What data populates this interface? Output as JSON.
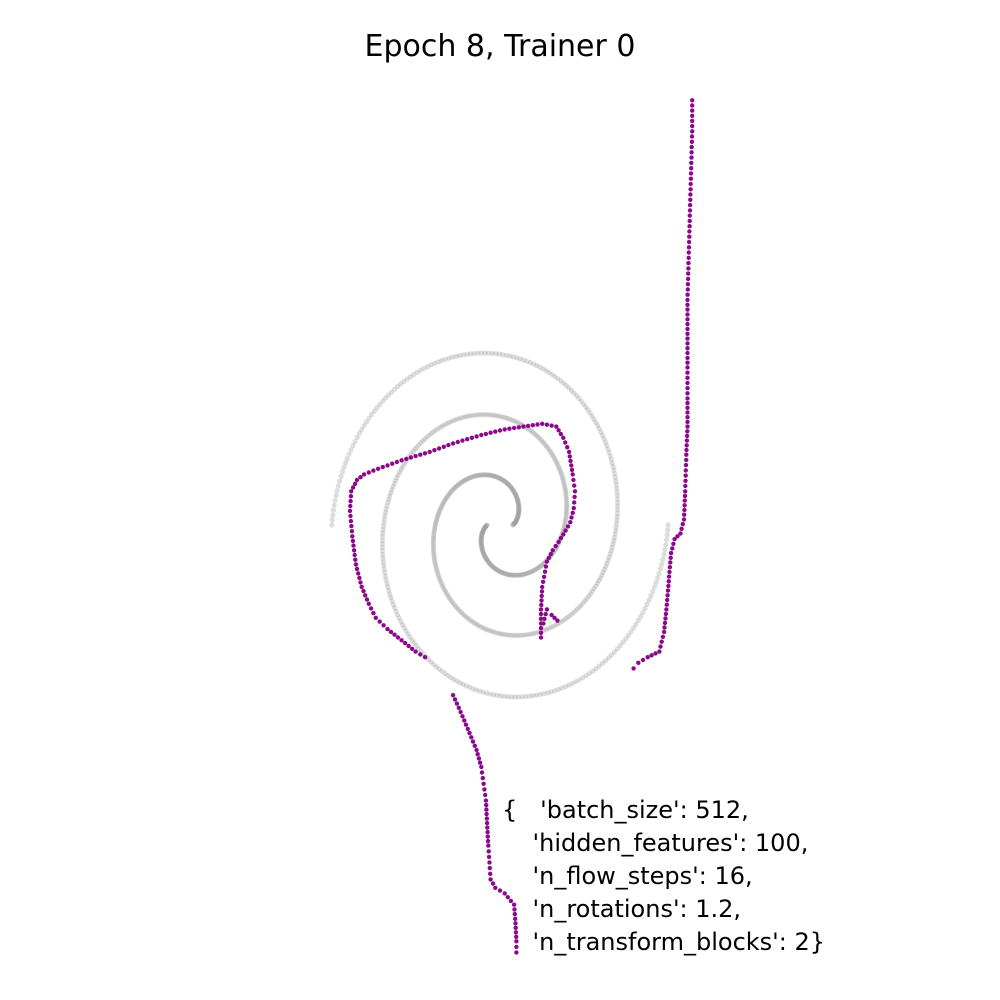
{
  "chart_data": {
    "type": "scatter",
    "title": "Epoch 8, Trainer 0",
    "xlabel": "",
    "ylabel": "",
    "axes_visible": false,
    "grid": false,
    "xlim": [
      -1.6,
      1.6
    ],
    "ylim": [
      -1.6,
      1.6
    ],
    "colors": {
      "target": "#9e9e9e",
      "samples": "#8b0a8b"
    },
    "series": [
      {
        "role": "target",
        "style": "faint gray two-arm spiral",
        "arms": [
          {
            "start_angle_deg": 0,
            "r_min": 0.06,
            "r_max": 0.78,
            "turns": 1.5
          },
          {
            "start_angle_deg": 180,
            "r_min": 0.06,
            "r_max": 0.78,
            "turns": 1.5
          }
        ]
      },
      {
        "role": "samples",
        "style": "purple points",
        "segments": [
          [
            [
              0.82,
              1.51
            ],
            [
              0.82,
              1.4
            ],
            [
              0.815,
              1.25
            ],
            [
              0.81,
              1.1
            ],
            [
              0.805,
              0.95
            ],
            [
              0.8,
              0.8
            ],
            [
              0.8,
              0.68
            ],
            [
              0.8,
              0.56
            ],
            [
              0.8,
              0.45
            ],
            [
              0.8,
              0.35
            ],
            [
              0.795,
              0.25
            ],
            [
              0.79,
              0.12
            ],
            [
              0.785,
              0.02
            ],
            [
              0.77,
              -0.03
            ],
            [
              0.745,
              -0.05
            ],
            [
              0.73,
              -0.1
            ],
            [
              0.72,
              -0.2
            ],
            [
              0.71,
              -0.3
            ],
            [
              0.7,
              -0.38
            ],
            [
              0.68,
              -0.45
            ],
            [
              0.63,
              -0.47
            ],
            [
              0.59,
              -0.49
            ],
            [
              0.57,
              -0.51
            ]
          ],
          [
            [
              0.175,
              -0.4
            ],
            [
              0.175,
              -0.3
            ],
            [
              0.18,
              -0.22
            ],
            [
              0.2,
              -0.13
            ],
            [
              0.225,
              -0.09
            ],
            [
              0.25,
              -0.06
            ],
            [
              0.28,
              -0.02
            ],
            [
              0.3,
              0.01
            ],
            [
              0.315,
              0.06
            ],
            [
              0.32,
              0.12
            ],
            [
              0.31,
              0.18
            ],
            [
              0.295,
              0.26
            ],
            [
              0.27,
              0.31
            ],
            [
              0.24,
              0.35
            ],
            [
              0.18,
              0.36
            ],
            [
              0.1,
              0.35
            ],
            [
              0.02,
              0.34
            ],
            [
              -0.08,
              0.32
            ],
            [
              -0.2,
              0.29
            ],
            [
              -0.3,
              0.26
            ],
            [
              -0.42,
              0.23
            ],
            [
              -0.52,
              0.2
            ],
            [
              -0.58,
              0.18
            ],
            [
              -0.61,
              0.16
            ],
            [
              -0.635,
              0.12
            ],
            [
              -0.64,
              0.05
            ],
            [
              -0.63,
              -0.04
            ],
            [
              -0.615,
              -0.14
            ],
            [
              -0.59,
              -0.22
            ],
            [
              -0.56,
              -0.28
            ],
            [
              -0.53,
              -0.33
            ],
            [
              -0.48,
              -0.37
            ],
            [
              -0.42,
              -0.41
            ],
            [
              -0.36,
              -0.45
            ],
            [
              -0.32,
              -0.47
            ]
          ],
          [
            [
              0.185,
              -0.35
            ],
            [
              0.2,
              -0.3
            ],
            [
              0.22,
              -0.32
            ],
            [
              0.245,
              -0.34
            ]
          ],
          [
            [
              -0.2,
              -0.605
            ],
            [
              -0.16,
              -0.68
            ],
            [
              -0.13,
              -0.74
            ],
            [
              -0.1,
              -0.8
            ],
            [
              -0.08,
              -0.86
            ],
            [
              -0.07,
              -0.92
            ],
            [
              -0.06,
              -0.98
            ],
            [
              -0.055,
              -1.06
            ],
            [
              -0.05,
              -1.14
            ],
            [
              -0.045,
              -1.2
            ],
            [
              -0.04,
              -1.26
            ],
            [
              -0.02,
              -1.29
            ],
            [
              0.02,
              -1.31
            ],
            [
              0.06,
              -1.35
            ],
            [
              0.065,
              -1.4
            ],
            [
              0.07,
              -1.48
            ],
            [
              0.07,
              -1.52
            ]
          ]
        ]
      }
    ],
    "annotation_lines": [
      "{   'batch_size': 512,",
      "    'hidden_features': 100,",
      "    'n_flow_steps': 16,",
      "    'n_rotations': 1.2,",
      "    'n_transform_blocks': 2}"
    ]
  }
}
